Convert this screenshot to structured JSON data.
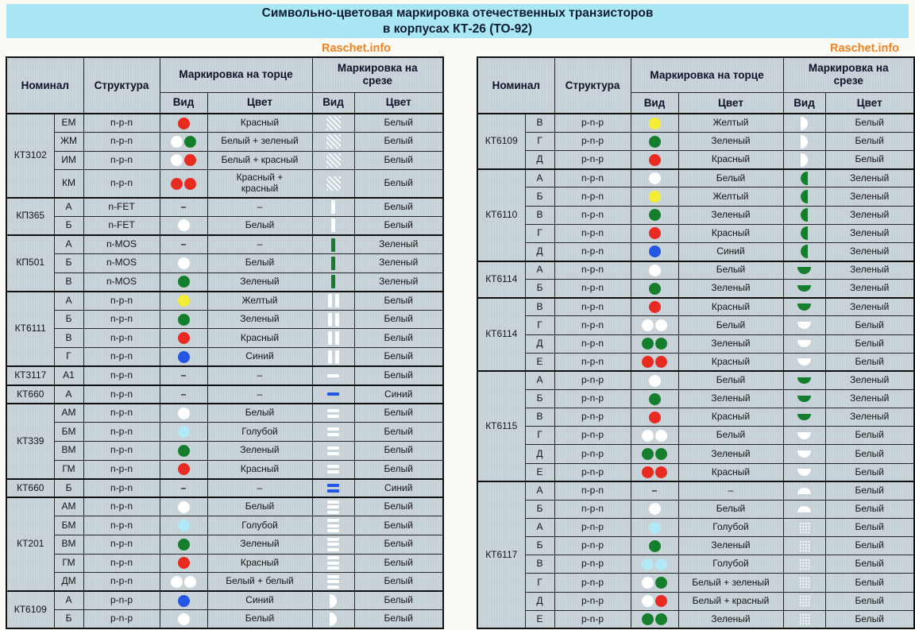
{
  "title": {
    "line1": "Символьно-цветовая маркировка отечественных транзисторов",
    "line2": "в корпусах КТ-26 (ТО-92)"
  },
  "watermark": "Raschet.info",
  "colors": {
    "white": "#ffffff",
    "red": "#e82a21",
    "green": "#157e2c",
    "blue": "#2456e6",
    "yellow": "#f3ee35",
    "lightblue": "#b2e9f6",
    "banner_bg": "#a9e7f5",
    "cell_bg": "#c9d3da",
    "watermark_color": "#f5821f"
  },
  "header": {
    "nominal": "Номинал",
    "structure": "Структура",
    "face": "Маркировка на торце",
    "cut": "Маркировка на срезе",
    "vid": "Вид",
    "tsvet": "Цвет"
  },
  "dash": "–",
  "tables": [
    {
      "side": "left",
      "groups": [
        {
          "name": "КТ3102",
          "rows": [
            {
              "s": "ЕМ",
              "st": "n-p-n",
              "fv": [
                "red"
              ],
              "fc": "Красный",
              "cv": {
                "sh": "hatch",
                "c": "white"
              },
              "cc": "Белый"
            },
            {
              "s": "ЖМ",
              "st": "n-p-n",
              "fv": [
                "white",
                "green"
              ],
              "fc": "Белый + зеленый",
              "cv": {
                "sh": "hatch",
                "c": "white"
              },
              "cc": "Белый"
            },
            {
              "s": "ИМ",
              "st": "n-p-n",
              "fv": [
                "white",
                "red"
              ],
              "fc": "Белый + красный",
              "cv": {
                "sh": "hatch",
                "c": "white"
              },
              "cc": "Белый"
            },
            {
              "s": "КМ",
              "st": "n-p-n",
              "fv": [
                "red",
                "red"
              ],
              "fc": "Красный + красный",
              "cv": {
                "sh": "hatch",
                "c": "white"
              },
              "cc": "Белый",
              "tall": true
            }
          ]
        },
        {
          "name": "КП365",
          "rows": [
            {
              "s": "А",
              "st": "n-FET",
              "fv": null,
              "fc": "–",
              "cv": {
                "sh": "vbar",
                "c": "white",
                "n": 1
              },
              "cc": "Белый"
            },
            {
              "s": "Б",
              "st": "n-FET",
              "fv": [
                "white"
              ],
              "fc": "Белый",
              "cv": {
                "sh": "vbar",
                "c": "white",
                "n": 1
              },
              "cc": "Белый"
            }
          ]
        },
        {
          "name": "КП501",
          "rows": [
            {
              "s": "А",
              "st": "n-MOS",
              "fv": null,
              "fc": "–",
              "cv": {
                "sh": "vbar",
                "c": "green",
                "n": 1
              },
              "cc": "Зеленый"
            },
            {
              "s": "Б",
              "st": "n-MOS",
              "fv": [
                "white"
              ],
              "fc": "Белый",
              "cv": {
                "sh": "vbar",
                "c": "green",
                "n": 1
              },
              "cc": "Зеленый"
            },
            {
              "s": "В",
              "st": "n-MOS",
              "fv": [
                "green"
              ],
              "fc": "Зеленый",
              "cv": {
                "sh": "vbar",
                "c": "green",
                "n": 1
              },
              "cc": "Зеленый"
            }
          ]
        },
        {
          "name": "КТ6111",
          "rows": [
            {
              "s": "А",
              "st": "n-p-n",
              "fv": [
                "yellow"
              ],
              "fc": "Желтый",
              "cv": {
                "sh": "vbar",
                "c": "white",
                "n": 2
              },
              "cc": "Белый"
            },
            {
              "s": "Б",
              "st": "n-p-n",
              "fv": [
                "green"
              ],
              "fc": "Зеленый",
              "cv": {
                "sh": "vbar",
                "c": "white",
                "n": 2
              },
              "cc": "Белый"
            },
            {
              "s": "В",
              "st": "n-p-n",
              "fv": [
                "red"
              ],
              "fc": "Красный",
              "cv": {
                "sh": "vbar",
                "c": "white",
                "n": 2
              },
              "cc": "Белый"
            },
            {
              "s": "Г",
              "st": "n-p-n",
              "fv": [
                "blue"
              ],
              "fc": "Синий",
              "cv": {
                "sh": "vbar",
                "c": "white",
                "n": 2
              },
              "cc": "Белый"
            }
          ]
        },
        {
          "name": "КТ3117",
          "rows": [
            {
              "s": "А1",
              "st": "n-p-n",
              "fv": null,
              "fc": "–",
              "cv": {
                "sh": "hdash",
                "c": "white",
                "n": 1
              },
              "cc": "Белый"
            }
          ]
        },
        {
          "name": "КТ660",
          "rows": [
            {
              "s": "А",
              "st": "n-p-n",
              "fv": null,
              "fc": "–",
              "cv": {
                "sh": "hdash",
                "c": "blue",
                "n": 1
              },
              "cc": "Синий"
            }
          ]
        },
        {
          "name": "КТ339",
          "rows": [
            {
              "s": "АМ",
              "st": "n-p-n",
              "fv": [
                "white"
              ],
              "fc": "Белый",
              "cv": {
                "sh": "hdash",
                "c": "white",
                "n": 2
              },
              "cc": "Белый"
            },
            {
              "s": "БМ",
              "st": "n-p-n",
              "fv": [
                "lightblue"
              ],
              "fc": "Голубой",
              "cv": {
                "sh": "hdash",
                "c": "white",
                "n": 2
              },
              "cc": "Белый"
            },
            {
              "s": "ВМ",
              "st": "n-p-n",
              "fv": [
                "green"
              ],
              "fc": "Зеленый",
              "cv": {
                "sh": "hdash",
                "c": "white",
                "n": 2
              },
              "cc": "Белый"
            },
            {
              "s": "ГМ",
              "st": "n-p-n",
              "fv": [
                "red"
              ],
              "fc": "Красный",
              "cv": {
                "sh": "hdash",
                "c": "white",
                "n": 2
              },
              "cc": "Белый"
            }
          ]
        },
        {
          "name": "КТ660",
          "rows": [
            {
              "s": "Б",
              "st": "n-p-n",
              "fv": null,
              "fc": "–",
              "cv": {
                "sh": "hdash",
                "c": "blue",
                "n": 2
              },
              "cc": "Синий"
            }
          ]
        },
        {
          "name": "КТ201",
          "rows": [
            {
              "s": "АМ",
              "st": "n-p-n",
              "fv": [
                "white"
              ],
              "fc": "Белый",
              "cv": {
                "sh": "hdash",
                "c": "white",
                "n": 3
              },
              "cc": "Белый"
            },
            {
              "s": "БМ",
              "st": "n-p-n",
              "fv": [
                "lightblue"
              ],
              "fc": "Голубой",
              "cv": {
                "sh": "hdash",
                "c": "white",
                "n": 3
              },
              "cc": "Белый"
            },
            {
              "s": "ВМ",
              "st": "n-p-n",
              "fv": [
                "green"
              ],
              "fc": "Зеленый",
              "cv": {
                "sh": "hdash",
                "c": "white",
                "n": 3
              },
              "cc": "Белый"
            },
            {
              "s": "ГМ",
              "st": "n-p-n",
              "fv": [
                "red"
              ],
              "fc": "Красный",
              "cv": {
                "sh": "hdash",
                "c": "white",
                "n": 3
              },
              "cc": "Белый"
            },
            {
              "s": "ДМ",
              "st": "n-p-n",
              "fv": [
                "white",
                "white"
              ],
              "fc": "Белый + белый",
              "cv": {
                "sh": "hdash",
                "c": "white",
                "n": 3
              },
              "cc": "Белый"
            }
          ]
        },
        {
          "name": "КТ6109",
          "rows": [
            {
              "s": "А",
              "st": "p-n-p",
              "fv": [
                "blue"
              ],
              "fc": "Синий",
              "cv": {
                "sh": "half-right",
                "c": "white"
              },
              "cc": "Белый"
            },
            {
              "s": "Б",
              "st": "p-n-p",
              "fv": [
                "white"
              ],
              "fc": "Белый",
              "cv": {
                "sh": "half-right",
                "c": "white"
              },
              "cc": "Белый"
            }
          ]
        }
      ]
    },
    {
      "side": "right",
      "groups": [
        {
          "name": "КТ6109",
          "rows": [
            {
              "s": "В",
              "st": "p-n-p",
              "fv": [
                "yellow"
              ],
              "fc": "Желтый",
              "cv": {
                "sh": "half-right",
                "c": "white"
              },
              "cc": "Белый"
            },
            {
              "s": "Г",
              "st": "p-n-p",
              "fv": [
                "green"
              ],
              "fc": "Зеленый",
              "cv": {
                "sh": "half-right",
                "c": "white"
              },
              "cc": "Белый"
            },
            {
              "s": "Д",
              "st": "p-n-p",
              "fv": [
                "red"
              ],
              "fc": "Красный",
              "cv": {
                "sh": "half-right",
                "c": "white"
              },
              "cc": "Белый"
            }
          ]
        },
        {
          "name": "КТ6110",
          "rows": [
            {
              "s": "А",
              "st": "n-p-n",
              "fv": [
                "white"
              ],
              "fc": "Белый",
              "cv": {
                "sh": "half-left",
                "c": "green"
              },
              "cc": "Зеленый"
            },
            {
              "s": "Б",
              "st": "n-p-n",
              "fv": [
                "yellow"
              ],
              "fc": "Желтый",
              "cv": {
                "sh": "half-left",
                "c": "green"
              },
              "cc": "Зеленый"
            },
            {
              "s": "В",
              "st": "n-p-n",
              "fv": [
                "green"
              ],
              "fc": "Зеленый",
              "cv": {
                "sh": "half-left",
                "c": "green"
              },
              "cc": "Зеленый"
            },
            {
              "s": "Г",
              "st": "n-p-n",
              "fv": [
                "red"
              ],
              "fc": "Красный",
              "cv": {
                "sh": "half-left",
                "c": "green"
              },
              "cc": "Зеленый"
            },
            {
              "s": "Д",
              "st": "n-p-n",
              "fv": [
                "blue"
              ],
              "fc": "Синий",
              "cv": {
                "sh": "half-left",
                "c": "green"
              },
              "cc": "Зеленый"
            }
          ]
        },
        {
          "name": "КТ6114",
          "rows": [
            {
              "s": "А",
              "st": "n-p-n",
              "fv": [
                "white"
              ],
              "fc": "Белый",
              "cv": {
                "sh": "half-bottom",
                "c": "green"
              },
              "cc": "Зеленый"
            },
            {
              "s": "Б",
              "st": "n-p-n",
              "fv": [
                "green"
              ],
              "fc": "Зеленый",
              "cv": {
                "sh": "half-bottom",
                "c": "green"
              },
              "cc": "Зеленый"
            }
          ]
        },
        {
          "name": "КТ6114",
          "rows": [
            {
              "s": "В",
              "st": "n-p-n",
              "fv": [
                "red"
              ],
              "fc": "Красный",
              "cv": {
                "sh": "half-bottom",
                "c": "green"
              },
              "cc": "Зеленый"
            },
            {
              "s": "Г",
              "st": "n-p-n",
              "fv": [
                "white",
                "white"
              ],
              "fc": "Белый",
              "cv": {
                "sh": "half-bottom",
                "c": "white"
              },
              "cc": "Белый"
            },
            {
              "s": "Д",
              "st": "n-p-n",
              "fv": [
                "green",
                "green"
              ],
              "fc": "Зеленый",
              "cv": {
                "sh": "half-bottom",
                "c": "white"
              },
              "cc": "Белый"
            },
            {
              "s": "Е",
              "st": "n-p-n",
              "fv": [
                "red",
                "red"
              ],
              "fc": "Красный",
              "cv": {
                "sh": "half-bottom",
                "c": "white"
              },
              "cc": "Белый"
            }
          ]
        },
        {
          "name": "КТ6115",
          "rows": [
            {
              "s": "А",
              "st": "p-n-p",
              "fv": [
                "white"
              ],
              "fc": "Белый",
              "cv": {
                "sh": "half-bottom",
                "c": "green"
              },
              "cc": "Зеленый"
            },
            {
              "s": "Б",
              "st": "p-n-p",
              "fv": [
                "green"
              ],
              "fc": "Зеленый",
              "cv": {
                "sh": "half-bottom",
                "c": "green"
              },
              "cc": "Зеленый"
            },
            {
              "s": "В",
              "st": "p-n-p",
              "fv": [
                "red"
              ],
              "fc": "Красный",
              "cv": {
                "sh": "half-bottom",
                "c": "green"
              },
              "cc": "Зеленый"
            },
            {
              "s": "Г",
              "st": "p-n-p",
              "fv": [
                "white",
                "white"
              ],
              "fc": "Белый",
              "cv": {
                "sh": "half-bottom",
                "c": "white"
              },
              "cc": "Белый"
            },
            {
              "s": "Д",
              "st": "p-n-p",
              "fv": [
                "green",
                "green"
              ],
              "fc": "Зеленый",
              "cv": {
                "sh": "half-bottom",
                "c": "white"
              },
              "cc": "Белый"
            },
            {
              "s": "Е",
              "st": "p-n-p",
              "fv": [
                "red",
                "red"
              ],
              "fc": "Красный",
              "cv": {
                "sh": "half-bottom",
                "c": "white"
              },
              "cc": "Белый"
            }
          ]
        },
        {
          "name": "КТ6117",
          "rows": [
            {
              "s": "А",
              "st": "n-p-n",
              "fv": null,
              "fc": "–",
              "cv": {
                "sh": "half-top",
                "c": "white"
              },
              "cc": "Белый"
            },
            {
              "s": "Б",
              "st": "n-p-n",
              "fv": [
                "white"
              ],
              "fc": "Белый",
              "cv": {
                "sh": "half-top",
                "c": "white"
              },
              "cc": "Белый"
            },
            {
              "s": "А",
              "st": "p-n-p",
              "fv": [
                "lightblue"
              ],
              "fc": "Голубой",
              "cv": {
                "sh": "grid",
                "c": "white"
              },
              "cc": "Белый"
            },
            {
              "s": "Б",
              "st": "p-n-p",
              "fv": [
                "green"
              ],
              "fc": "Зеленый",
              "cv": {
                "sh": "grid",
                "c": "white"
              },
              "cc": "Белый"
            },
            {
              "s": "В",
              "st": "p-n-p",
              "fv": [
                "lightblue",
                "lightblue"
              ],
              "fc": "Голубой",
              "cv": {
                "sh": "grid",
                "c": "white"
              },
              "cc": "Белый"
            },
            {
              "s": "Г",
              "st": "p-n-p",
              "fv": [
                "white",
                "green"
              ],
              "fc": "Белый + зеленый",
              "cv": {
                "sh": "grid",
                "c": "white"
              },
              "cc": "Белый"
            },
            {
              "s": "Д",
              "st": "p-n-p",
              "fv": [
                "white",
                "red"
              ],
              "fc": "Белый + красный",
              "cv": {
                "sh": "grid",
                "c": "white"
              },
              "cc": "Белый"
            },
            {
              "s": "Е",
              "st": "p-n-p",
              "fv": [
                "green",
                "green"
              ],
              "fc": "Зеленый",
              "cv": {
                "sh": "grid",
                "c": "white"
              },
              "cc": "Белый"
            }
          ]
        }
      ]
    }
  ]
}
